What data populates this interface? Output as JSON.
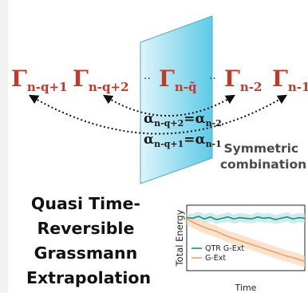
{
  "diagram": {
    "gammas": [
      {
        "base": "Γ",
        "sub": "n-q+1"
      },
      {
        "base": "Γ",
        "sub": "n-q+2"
      },
      {
        "base": "Γ",
        "sub": "n-q̃"
      },
      {
        "base": "Γ",
        "sub": "n-2"
      },
      {
        "base": "Γ",
        "sub": "n-1"
      }
    ],
    "ellipsis": "··",
    "equations": [
      {
        "lhs_base": "α",
        "lhs_sub": "n-q+2",
        "eq": "=",
        "rhs_base": "α",
        "rhs_sub": "n-2"
      },
      {
        "lhs_base": "α",
        "lhs_sub": "n-q+1",
        "eq": "=",
        "rhs_base": "α",
        "rhs_sub": "n-1"
      }
    ],
    "note_lines": [
      "Symmetric",
      "combination"
    ],
    "title_lines": [
      "Quasi Time-",
      "Reversible",
      "Grassmann",
      "Extrapolation"
    ],
    "colors": {
      "gamma": "#c0392b",
      "plane_light": "#dff4fb",
      "plane_dark": "#5ccbe6",
      "arrow": "#111111"
    }
  },
  "inset_chart": {
    "ylabel": "Total Energy",
    "xlabel": "Time"
  },
  "chart_data": {
    "type": "line",
    "title": "",
    "xlabel": "Time",
    "ylabel": "Total Energy",
    "x": [
      0,
      1,
      2,
      3,
      4,
      5,
      6,
      7,
      8,
      9,
      10,
      11,
      12,
      13,
      14,
      15,
      16,
      17,
      18,
      19,
      20
    ],
    "ylim": [
      0,
      1
    ],
    "grid": false,
    "legend": "bottom-left",
    "series": [
      {
        "name": "QTR G-Ext",
        "color": "#1a8c86",
        "band_color": "#bfe6e3",
        "values": [
          0.81,
          0.8,
          0.83,
          0.79,
          0.82,
          0.78,
          0.8,
          0.82,
          0.79,
          0.81,
          0.8,
          0.79,
          0.82,
          0.8,
          0.81,
          0.78,
          0.8,
          0.82,
          0.79,
          0.81,
          0.8
        ],
        "spread": 0.07
      },
      {
        "name": "G-Ext",
        "color": "#f0a060",
        "band_color": "#f8d9bd",
        "values": [
          0.79,
          0.74,
          0.7,
          0.66,
          0.63,
          0.6,
          0.56,
          0.52,
          0.49,
          0.46,
          0.43,
          0.4,
          0.37,
          0.34,
          0.31,
          0.28,
          0.25,
          0.22,
          0.2,
          0.17,
          0.14
        ],
        "spread": 0.09
      }
    ]
  }
}
